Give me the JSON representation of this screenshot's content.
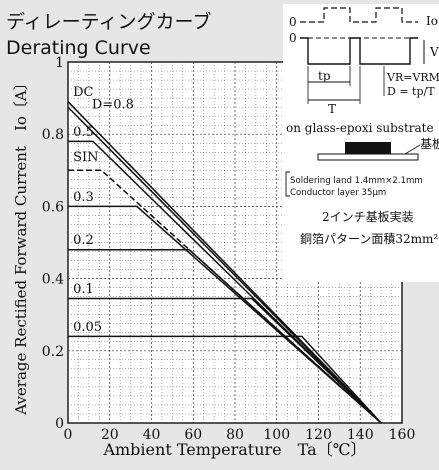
{
  "chart_data": {
    "type": "line",
    "title": "ディレーティングカーブ",
    "subtitle": "Derating Curve",
    "xlabel": "Ambient Temperature　Ta〔℃〕",
    "ylabel": "Average Rectified Forward Current　Io〔A〕",
    "xlim": [
      0,
      160
    ],
    "ylim": [
      0,
      1
    ],
    "x_ticks": [
      "0",
      "20",
      "40",
      "60",
      "80",
      "100",
      "120",
      "140",
      "160"
    ],
    "y_ticks": [
      "0",
      "0.2",
      "0.4",
      "0.6",
      "0.8",
      "1"
    ],
    "grid": true,
    "series": [
      {
        "name": "DC",
        "dashed": false,
        "points": [
          [
            0,
            0.89
          ],
          [
            150,
            0
          ]
        ]
      },
      {
        "name": "D=0.8",
        "dashed": false,
        "points": [
          [
            0,
            0.875
          ],
          [
            150,
            0
          ]
        ]
      },
      {
        "name": "0.5",
        "dashed": false,
        "points": [
          [
            0,
            0.78
          ],
          [
            12,
            0.78
          ],
          [
            150,
            0
          ]
        ]
      },
      {
        "name": "SIN",
        "dashed": true,
        "points": [
          [
            0,
            0.7
          ],
          [
            16,
            0.7
          ],
          [
            150,
            0
          ]
        ]
      },
      {
        "name": "0.3",
        "dashed": false,
        "points": [
          [
            0,
            0.6
          ],
          [
            33,
            0.6
          ],
          [
            150,
            0
          ]
        ]
      },
      {
        "name": "0.2",
        "dashed": false,
        "points": [
          [
            0,
            0.48
          ],
          [
            58,
            0.48
          ],
          [
            150,
            0
          ]
        ]
      },
      {
        "name": "0.1",
        "dashed": false,
        "points": [
          [
            0,
            0.345
          ],
          [
            88,
            0.345
          ],
          [
            150,
            0
          ]
        ]
      },
      {
        "name": "0.05",
        "dashed": false,
        "points": [
          [
            0,
            0.24
          ],
          [
            112,
            0.24
          ],
          [
            150,
            0
          ]
        ]
      }
    ],
    "legend_labels": [
      {
        "text": "DC",
        "x": 1,
        "y": 0.9
      },
      {
        "text": "D=0.8",
        "x": 10,
        "y": 0.865
      },
      {
        "text": "0.5",
        "x": 1,
        "y": 0.79
      },
      {
        "text": "SIN",
        "x": 1,
        "y": 0.72
      },
      {
        "text": "0.3",
        "x": 1,
        "y": 0.61
      },
      {
        "text": "0.2",
        "x": 1,
        "y": 0.49
      },
      {
        "text": "0.1",
        "x": 1,
        "y": 0.355
      },
      {
        "text": "0.05",
        "x": 1,
        "y": 0.25
      }
    ]
  },
  "inset": {
    "waveform_io_label": "Io",
    "waveform_zero_top": "0",
    "waveform_zero_bottom": "0",
    "waveform_v_label": "V",
    "tp_label": "tp",
    "t_label": "T",
    "vr_text": "VR=VRM",
    "duty_text": "D = tp/T",
    "substrate_text": "on glass-epoxi substrate",
    "board_label": "基板",
    "spec_line1": "Soldering land 1.4mm×2.1mm",
    "spec_line2": "Conductor layer 35μm",
    "jp_line1": "2インチ基板実装",
    "jp_line2": "銅箔パターン面積32mm²"
  }
}
